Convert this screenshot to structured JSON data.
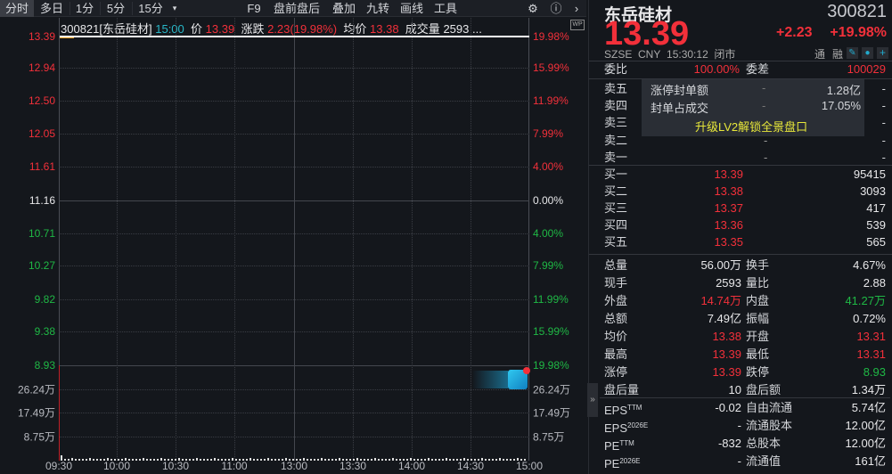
{
  "toolbar": {
    "tabs": [
      "分时",
      "多日",
      "1分",
      "5分",
      "15分"
    ],
    "more_icon": "dropdown-icon",
    "right": [
      "F9",
      "盘前盘后",
      "叠加",
      "九转",
      "画线",
      "工具"
    ],
    "icons": [
      "gear-icon",
      "help-icon",
      "chevron-right-icon"
    ]
  },
  "chart_header": {
    "code_name": "300821[东岳硅材]",
    "time": "15:00",
    "price_label": "价",
    "price": "13.39",
    "change_label": "涨跌",
    "change": "2.23(19.98%)",
    "avg_label": "均价",
    "avg": "13.38",
    "vol_label": "成交量",
    "vol": "2593",
    "more": "...",
    "wp_badge": "WP"
  },
  "price_axis_left": [
    "13.39",
    "12.94",
    "12.50",
    "12.05",
    "11.61",
    "11.16",
    "10.71",
    "10.27",
    "9.82",
    "9.38",
    "8.93"
  ],
  "pct_axis_right": [
    "19.98%",
    "15.99%",
    "11.99%",
    "7.99%",
    "4.00%",
    "0.00%",
    "4.00%",
    "7.99%",
    "11.99%",
    "15.99%",
    "19.98%"
  ],
  "volume_axis_left": [
    "26.24万",
    "17.49万",
    "8.75万"
  ],
  "volume_axis_right": [
    "26.24万",
    "17.49万",
    "8.75万"
  ],
  "time_axis": [
    "09:30",
    "10:00",
    "10:30",
    "11:00",
    "13:00",
    "13:30",
    "14:00",
    "14:30",
    "15:00"
  ],
  "colors": {
    "up": "#f2303a",
    "down": "#1fb845",
    "price_line": "#ffffff",
    "avg_line": "#f0a020"
  },
  "quote": {
    "name": "东岳硅材",
    "code": "300821",
    "price": "13.39",
    "change": "+2.23",
    "change_pct": "+19.98%",
    "exchange": "SZSE",
    "currency": "CNY",
    "time": "15:30:12",
    "status": "闭市",
    "tags": [
      "通",
      "融"
    ],
    "icons": [
      "pencil-icon",
      "bell-icon",
      "plus-icon"
    ]
  },
  "order_ratio": {
    "label1": "委比",
    "value1": "100.00%",
    "label2": "委差",
    "value2": "100029"
  },
  "sell": [
    {
      "label": "卖五",
      "price": "",
      "vol": "-"
    },
    {
      "label": "卖四",
      "price": "",
      "vol": "-"
    },
    {
      "label": "卖三",
      "price": "",
      "vol": "-"
    },
    {
      "label": "卖二",
      "price": "-",
      "vol": "-"
    },
    {
      "label": "卖一",
      "price": "-",
      "vol": "-"
    }
  ],
  "overlay": {
    "r1_label": "涨停封单额",
    "r1_dash": "-",
    "r1_value": "1.28亿",
    "r2_label": "封单占成交",
    "r2_dash": "-",
    "r2_value": "17.05%",
    "upgrade": "升级LV2解锁全景盘口"
  },
  "buy": [
    {
      "label": "买一",
      "price": "13.39",
      "vol": "95415"
    },
    {
      "label": "买二",
      "price": "13.38",
      "vol": "3093"
    },
    {
      "label": "买三",
      "price": "13.37",
      "vol": "417"
    },
    {
      "label": "买四",
      "price": "13.36",
      "vol": "539"
    },
    {
      "label": "买五",
      "price": "13.35",
      "vol": "565"
    }
  ],
  "stats": [
    {
      "l1": "总量",
      "v1": "56.00万",
      "c1": "white",
      "l2": "换手",
      "v2": "4.67%",
      "c2": "white"
    },
    {
      "l1": "现手",
      "v1": "2593",
      "c1": "white",
      "l2": "量比",
      "v2": "2.88",
      "c2": "white"
    },
    {
      "l1": "外盘",
      "v1": "14.74万",
      "c1": "red",
      "l2": "内盘",
      "v2": "41.27万",
      "c2": "green"
    },
    {
      "l1": "总额",
      "v1": "7.49亿",
      "c1": "white",
      "l2": "振幅",
      "v2": "0.72%",
      "c2": "white"
    },
    {
      "l1": "均价",
      "v1": "13.38",
      "c1": "red",
      "l2": "开盘",
      "v2": "13.31",
      "c2": "red"
    },
    {
      "l1": "最高",
      "v1": "13.39",
      "c1": "red",
      "l2": "最低",
      "v2": "13.31",
      "c2": "red"
    },
    {
      "l1": "涨停",
      "v1": "13.39",
      "c1": "red",
      "l2": "跌停",
      "v2": "8.93",
      "c2": "green"
    },
    {
      "l1": "盘后量",
      "v1": "10",
      "c1": "white",
      "l2": "盘后额",
      "v2": "1.34万",
      "c2": "white"
    }
  ],
  "fundamentals": [
    {
      "l1": "EPS",
      "s1": "TTM",
      "v1": "-0.02",
      "l2": "自由流通",
      "v2": "5.74亿"
    },
    {
      "l1": "EPS",
      "s1": "2026E",
      "v1": "-",
      "l2": "流通股本",
      "v2": "12.00亿"
    },
    {
      "l1": "PE",
      "s1": "TTM",
      "v1": "-832",
      "l2": "总股本",
      "v2": "12.00亿"
    },
    {
      "l1": "PE",
      "s1": "2026E",
      "v1": "-",
      "l2": "流通值",
      "v2": "161亿"
    }
  ],
  "collapse_icon": "double-chevron-right-icon"
}
